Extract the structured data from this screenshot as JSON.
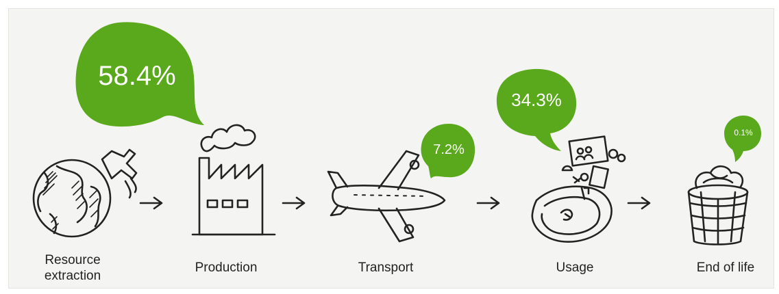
{
  "stages": [
    {
      "id": "resource-extraction",
      "label": "Resource\nextraction",
      "percent": "58.4%",
      "value": 58.4,
      "icon": "globe-with-faucet-icon"
    },
    {
      "id": "production",
      "label": "Production",
      "percent": "",
      "value": null,
      "icon": "factory-icon"
    },
    {
      "id": "transport",
      "label": "Transport",
      "percent": "7.2%",
      "value": 7.2,
      "icon": "airplane-icon"
    },
    {
      "id": "usage",
      "label": "Usage",
      "percent": "34.3%",
      "value": 34.3,
      "icon": "smartphone-with-apps-icon"
    },
    {
      "id": "end-of-life",
      "label": "End of life",
      "percent": "0.1%",
      "value": 0.1,
      "icon": "trash-bin-icon"
    }
  ],
  "arrow_icon": "right-arrow-icon",
  "colors": {
    "bubble": "#5aa91c",
    "ink": "#222222",
    "background": "#f4f4f2"
  }
}
